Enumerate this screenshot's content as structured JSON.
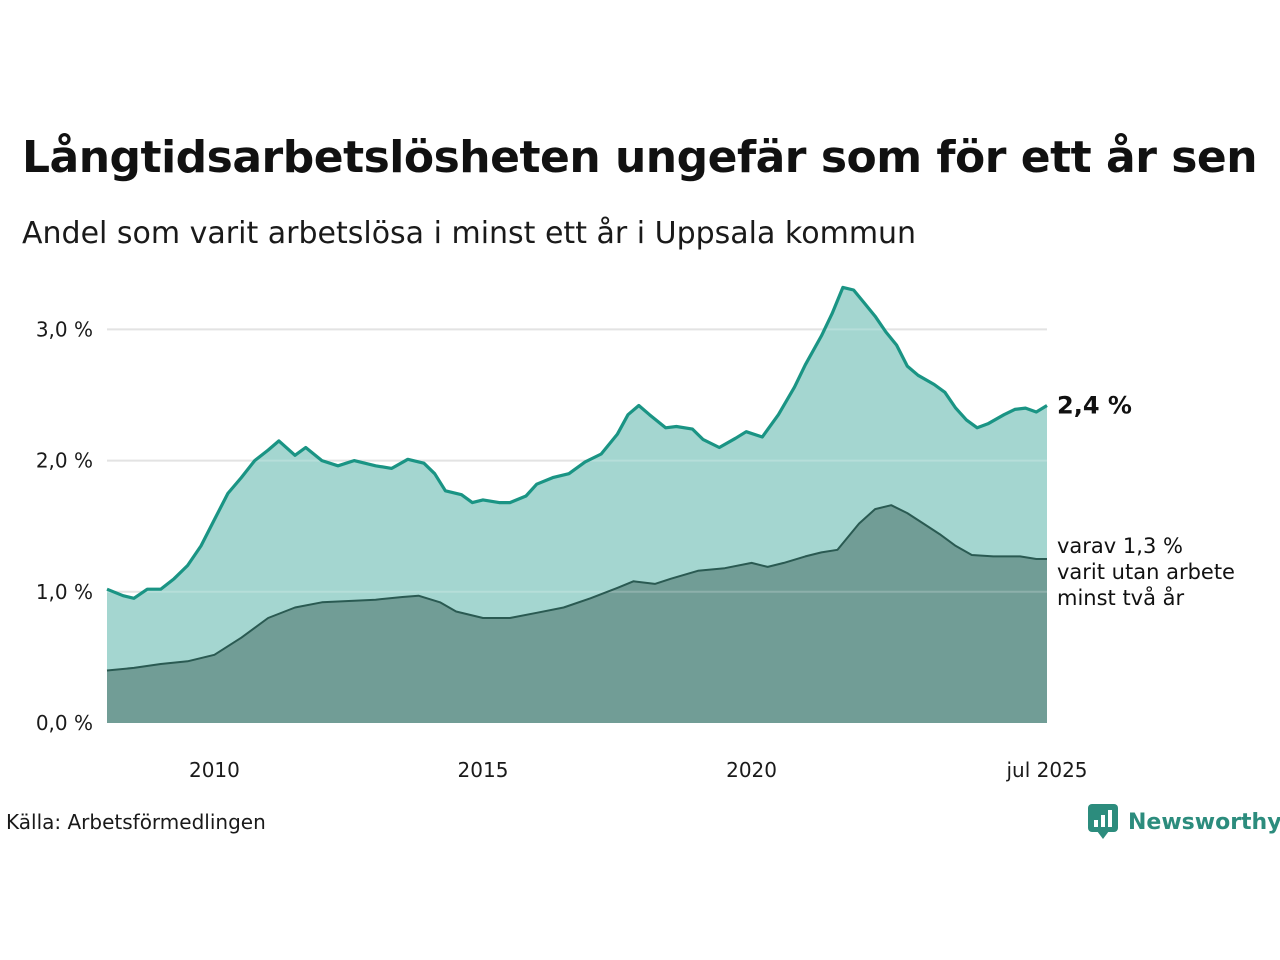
{
  "header": {
    "title": "Långtidsarbetslösheten ungefär som för ett år sen",
    "subtitle": "Andel som varit arbetslösa i minst ett år i Uppsala kommun"
  },
  "footer": {
    "source": "Källa: Arbetsförmedlingen",
    "brand": "Newsworthy"
  },
  "colors": {
    "upper_line": "#1a9484",
    "upper_fill": "#a2d5cf",
    "lower_line": "#2a5a52",
    "lower_fill": "#719d96",
    "grid": "#dddddd",
    "brand": "#2c8c7d"
  },
  "chart_data": {
    "type": "area",
    "title": "Långtidsarbetslösheten ungefär som för ett år sen",
    "subtitle": "Andel som varit arbetslösa i minst ett år i Uppsala kommun",
    "xlabel": "",
    "ylabel": "",
    "x_ticks": [
      {
        "value": 2010.0,
        "label": "2010"
      },
      {
        "value": 2015.0,
        "label": "2015"
      },
      {
        "value": 2020.0,
        "label": "2020"
      },
      {
        "value": 2025.5,
        "label": "jul 2025"
      }
    ],
    "y_ticks": [
      {
        "value": 0,
        "label": "0,0 %"
      },
      {
        "value": 1,
        "label": "1,0 %"
      },
      {
        "value": 2,
        "label": "2,0 %"
      },
      {
        "value": 3,
        "label": "3,0 %"
      }
    ],
    "xlim": [
      2008.0,
      2025.5
    ],
    "ylim": [
      0,
      3.3
    ],
    "grid": true,
    "series": [
      {
        "name": "",
        "end_label": "2,4 %",
        "points": [
          [
            2008.0,
            1.02
          ],
          [
            2008.3,
            0.97
          ],
          [
            2008.5,
            0.95
          ],
          [
            2008.75,
            1.02
          ],
          [
            2009.0,
            1.02
          ],
          [
            2009.25,
            1.1
          ],
          [
            2009.5,
            1.2
          ],
          [
            2009.75,
            1.35
          ],
          [
            2010.0,
            1.55
          ],
          [
            2010.25,
            1.75
          ],
          [
            2010.5,
            1.87
          ],
          [
            2010.75,
            2.0
          ],
          [
            2011.0,
            2.08
          ],
          [
            2011.2,
            2.15
          ],
          [
            2011.5,
            2.04
          ],
          [
            2011.7,
            2.1
          ],
          [
            2012.0,
            2.0
          ],
          [
            2012.3,
            1.96
          ],
          [
            2012.6,
            2.0
          ],
          [
            2013.0,
            1.96
          ],
          [
            2013.3,
            1.94
          ],
          [
            2013.6,
            2.01
          ],
          [
            2013.9,
            1.98
          ],
          [
            2014.1,
            1.9
          ],
          [
            2014.3,
            1.77
          ],
          [
            2014.6,
            1.74
          ],
          [
            2014.8,
            1.68
          ],
          [
            2015.0,
            1.7
          ],
          [
            2015.3,
            1.68
          ],
          [
            2015.5,
            1.68
          ],
          [
            2015.8,
            1.73
          ],
          [
            2016.0,
            1.82
          ],
          [
            2016.3,
            1.87
          ],
          [
            2016.6,
            1.9
          ],
          [
            2016.9,
            1.99
          ],
          [
            2017.2,
            2.05
          ],
          [
            2017.5,
            2.2
          ],
          [
            2017.7,
            2.35
          ],
          [
            2017.9,
            2.42
          ],
          [
            2018.1,
            2.35
          ],
          [
            2018.4,
            2.25
          ],
          [
            2018.6,
            2.26
          ],
          [
            2018.9,
            2.24
          ],
          [
            2019.1,
            2.16
          ],
          [
            2019.4,
            2.1
          ],
          [
            2019.7,
            2.17
          ],
          [
            2019.9,
            2.22
          ],
          [
            2020.2,
            2.18
          ],
          [
            2020.5,
            2.35
          ],
          [
            2020.8,
            2.56
          ],
          [
            2021.0,
            2.73
          ],
          [
            2021.3,
            2.95
          ],
          [
            2021.5,
            3.12
          ],
          [
            2021.7,
            3.32
          ],
          [
            2021.9,
            3.3
          ],
          [
            2022.1,
            3.2
          ],
          [
            2022.3,
            3.1
          ],
          [
            2022.5,
            2.98
          ],
          [
            2022.7,
            2.88
          ],
          [
            2022.9,
            2.72
          ],
          [
            2023.1,
            2.65
          ],
          [
            2023.4,
            2.58
          ],
          [
            2023.6,
            2.52
          ],
          [
            2023.8,
            2.4
          ],
          [
            2024.0,
            2.31
          ],
          [
            2024.2,
            2.25
          ],
          [
            2024.4,
            2.28
          ],
          [
            2024.7,
            2.35
          ],
          [
            2024.9,
            2.39
          ],
          [
            2025.1,
            2.4
          ],
          [
            2025.3,
            2.37
          ],
          [
            2025.5,
            2.42
          ]
        ]
      },
      {
        "name": "",
        "end_label_lines": [
          "varav 1,3 %",
          "varit utan arbete",
          "minst två år"
        ],
        "points": [
          [
            2008.0,
            0.4
          ],
          [
            2008.5,
            0.42
          ],
          [
            2009.0,
            0.45
          ],
          [
            2009.5,
            0.47
          ],
          [
            2010.0,
            0.52
          ],
          [
            2010.5,
            0.65
          ],
          [
            2011.0,
            0.8
          ],
          [
            2011.5,
            0.88
          ],
          [
            2012.0,
            0.92
          ],
          [
            2012.5,
            0.93
          ],
          [
            2013.0,
            0.94
          ],
          [
            2013.5,
            0.96
          ],
          [
            2013.8,
            0.97
          ],
          [
            2014.2,
            0.92
          ],
          [
            2014.5,
            0.85
          ],
          [
            2015.0,
            0.8
          ],
          [
            2015.5,
            0.8
          ],
          [
            2016.0,
            0.84
          ],
          [
            2016.5,
            0.88
          ],
          [
            2017.0,
            0.95
          ],
          [
            2017.5,
            1.03
          ],
          [
            2017.8,
            1.08
          ],
          [
            2018.2,
            1.06
          ],
          [
            2018.5,
            1.1
          ],
          [
            2019.0,
            1.16
          ],
          [
            2019.5,
            1.18
          ],
          [
            2020.0,
            1.22
          ],
          [
            2020.3,
            1.19
          ],
          [
            2020.6,
            1.22
          ],
          [
            2021.0,
            1.27
          ],
          [
            2021.3,
            1.3
          ],
          [
            2021.6,
            1.32
          ],
          [
            2022.0,
            1.52
          ],
          [
            2022.3,
            1.63
          ],
          [
            2022.6,
            1.66
          ],
          [
            2022.9,
            1.6
          ],
          [
            2023.2,
            1.52
          ],
          [
            2023.5,
            1.44
          ],
          [
            2023.8,
            1.35
          ],
          [
            2024.1,
            1.28
          ],
          [
            2024.5,
            1.27
          ],
          [
            2025.0,
            1.27
          ],
          [
            2025.3,
            1.25
          ],
          [
            2025.5,
            1.25
          ]
        ]
      }
    ]
  }
}
